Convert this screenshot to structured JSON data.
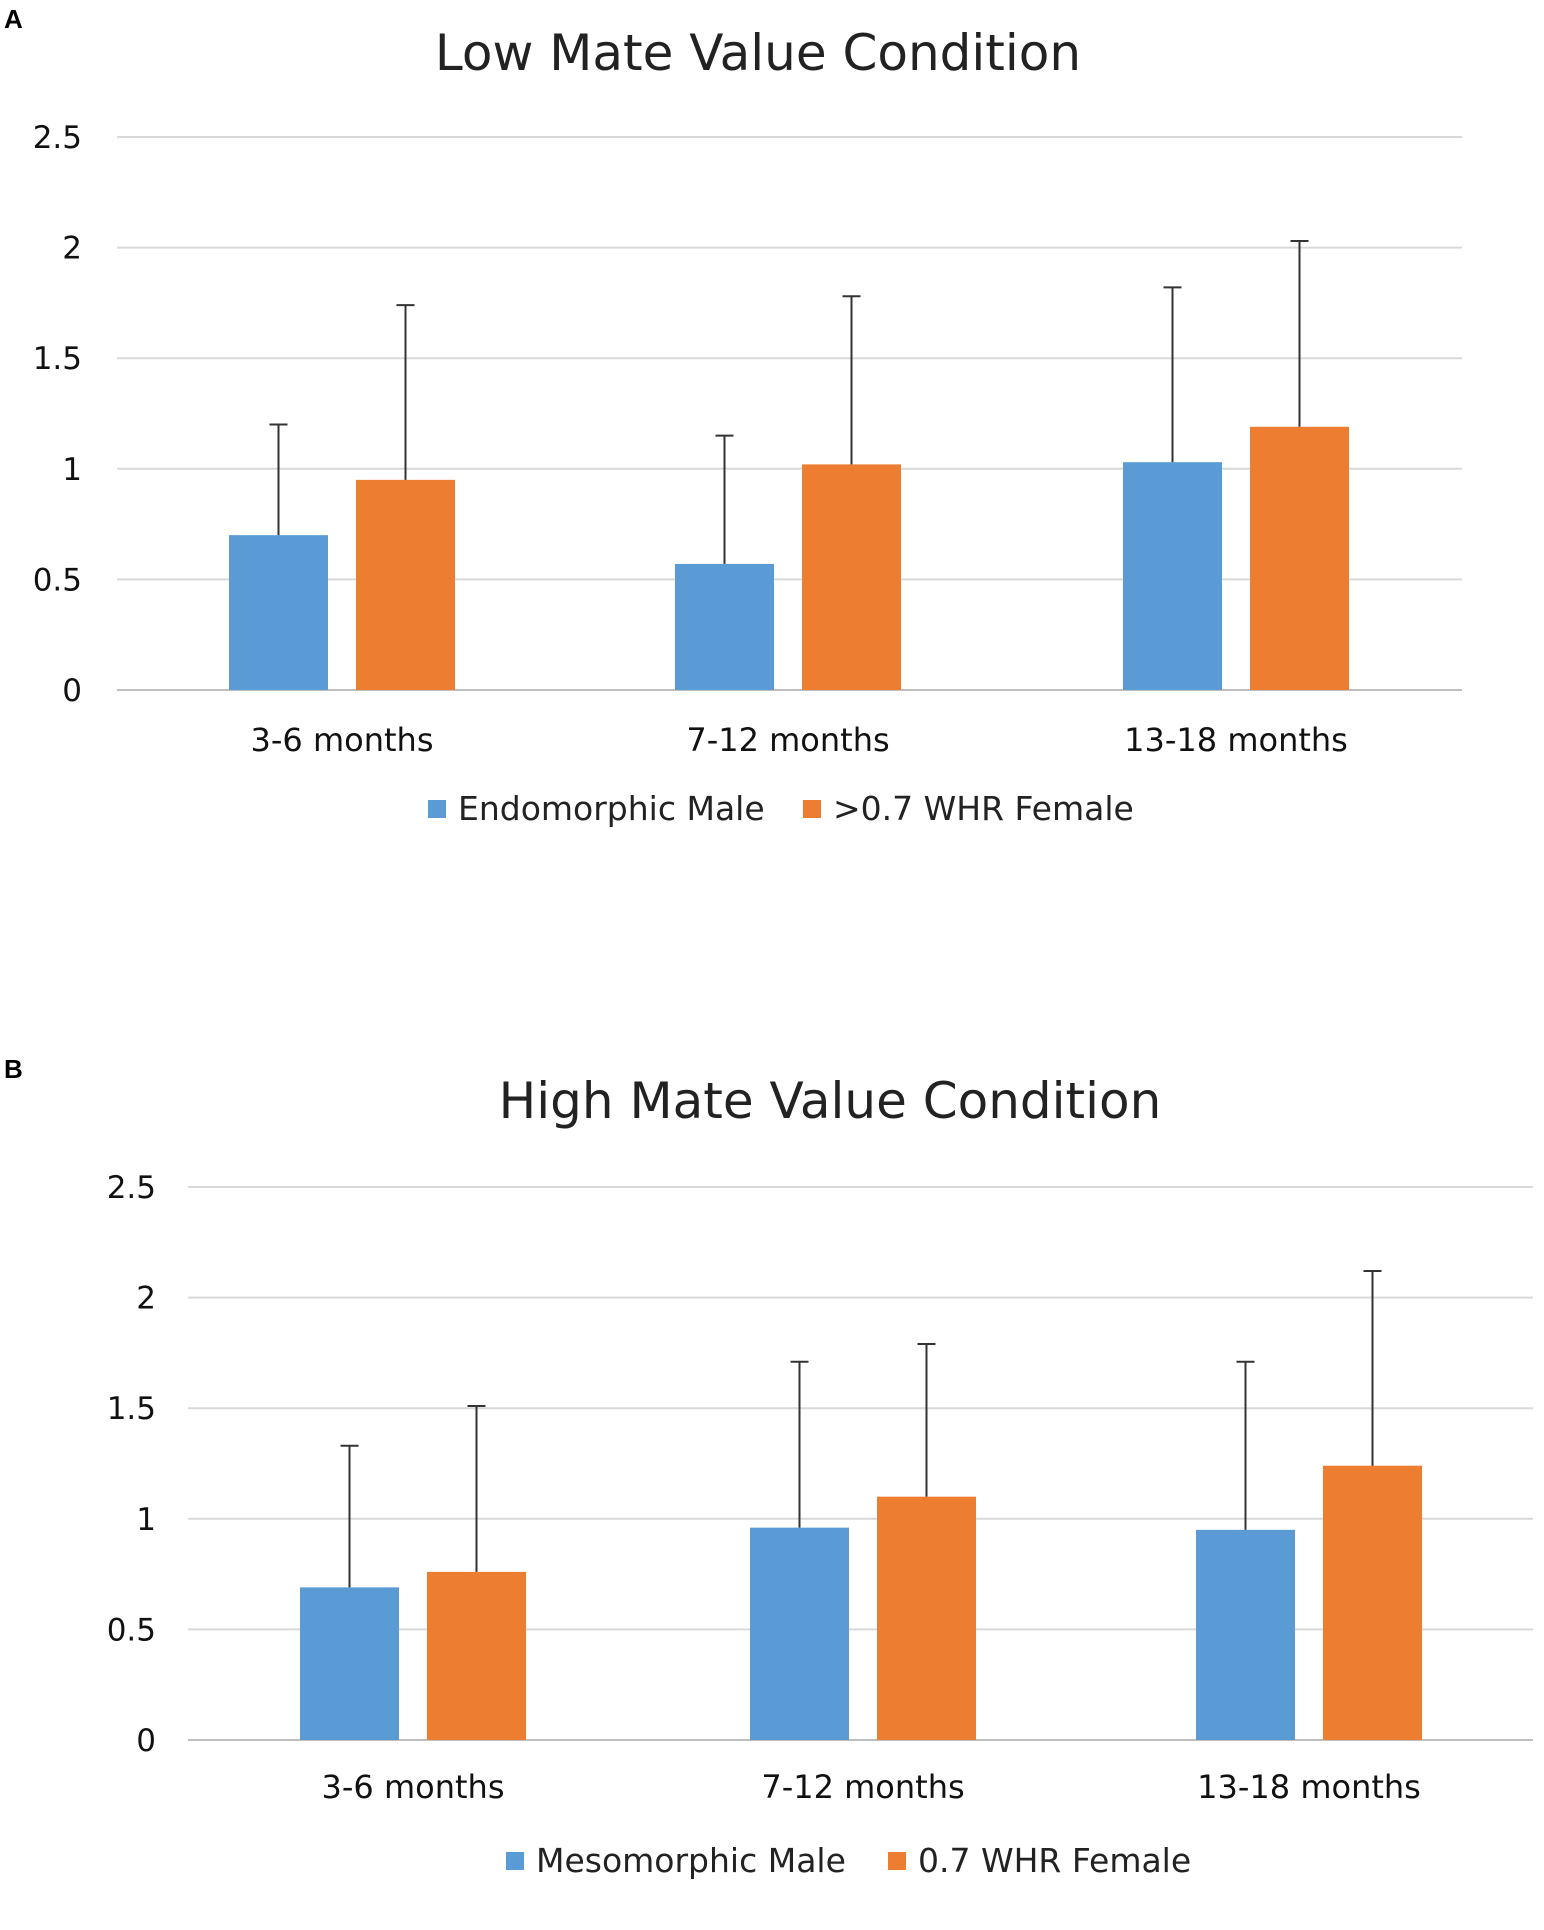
{
  "chart_data": [
    {
      "type": "bar",
      "panel": "A",
      "title": "Low Mate Value Condition",
      "categories": [
        "3-6 months",
        "7-12 months",
        "13-18 months"
      ],
      "series": [
        {
          "name": "Endomorphic Male",
          "color": "#5b9bd5",
          "values": [
            0.7,
            0.57,
            1.03
          ],
          "error_upper": [
            1.2,
            1.15,
            1.82
          ]
        },
        {
          "name": ">0.7 WHR Female",
          "color": "#ed7d31",
          "values": [
            0.95,
            1.02,
            1.19
          ],
          "error_upper": [
            1.74,
            1.78,
            2.03
          ]
        }
      ],
      "yticks": [
        "0",
        "0.5",
        "1",
        "1.5",
        "2",
        "2.5"
      ],
      "ylim": [
        0,
        2.5
      ],
      "xlabel": "",
      "ylabel": "",
      "grid": true,
      "legend": "bottom"
    },
    {
      "type": "bar",
      "panel": "B",
      "title": "High Mate Value Condition",
      "categories": [
        "3-6 months",
        "7-12 months",
        "13-18 months"
      ],
      "series": [
        {
          "name": "Mesomorphic Male",
          "color": "#5b9bd5",
          "values": [
            0.69,
            0.96,
            0.95
          ],
          "error_upper": [
            1.33,
            1.71,
            1.71
          ]
        },
        {
          "name": "0.7 WHR Female",
          "color": "#ed7d31",
          "values": [
            0.76,
            1.1,
            1.24
          ],
          "error_upper": [
            1.51,
            1.79,
            2.12
          ]
        }
      ],
      "yticks": [
        "0",
        "0.5",
        "1",
        "1.5",
        "2",
        "2.5"
      ],
      "ylim": [
        0,
        2.5
      ],
      "xlabel": "",
      "ylabel": "",
      "grid": true,
      "legend": "bottom"
    }
  ]
}
